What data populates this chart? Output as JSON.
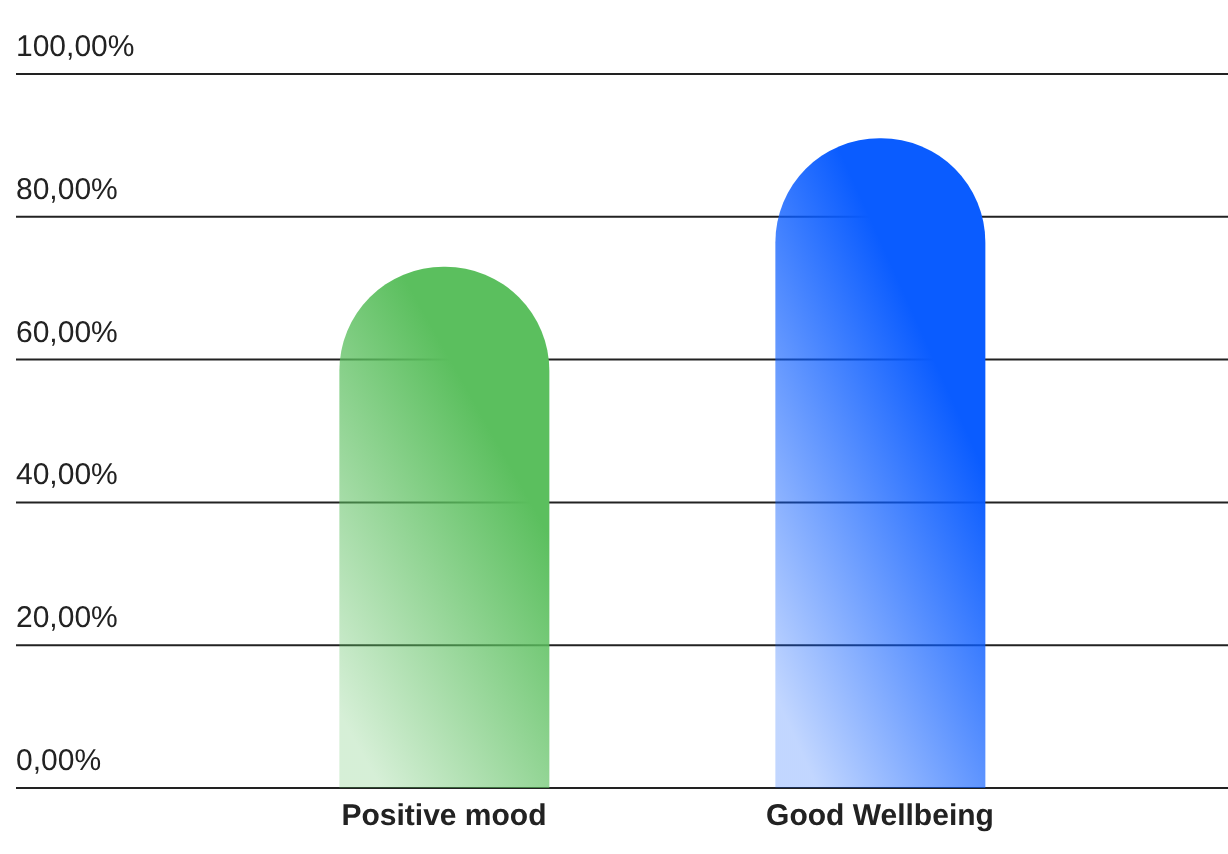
{
  "chart_data": {
    "type": "bar",
    "categories": [
      "Positive mood",
      "Good Wellbeing"
    ],
    "values": [
      73,
      91
    ],
    "colors": [
      "#5bbf5e",
      "#0a5cff"
    ],
    "ylim": [
      0,
      100
    ],
    "yticks": [
      {
        "value": 0,
        "label": "0,00%"
      },
      {
        "value": 20,
        "label": "20,00%"
      },
      {
        "value": 40,
        "label": "40,00%"
      },
      {
        "value": 60,
        "label": "60,00%"
      },
      {
        "value": 80,
        "label": "80,00%"
      },
      {
        "value": 100,
        "label": "100,00%"
      }
    ],
    "grid": "y"
  }
}
